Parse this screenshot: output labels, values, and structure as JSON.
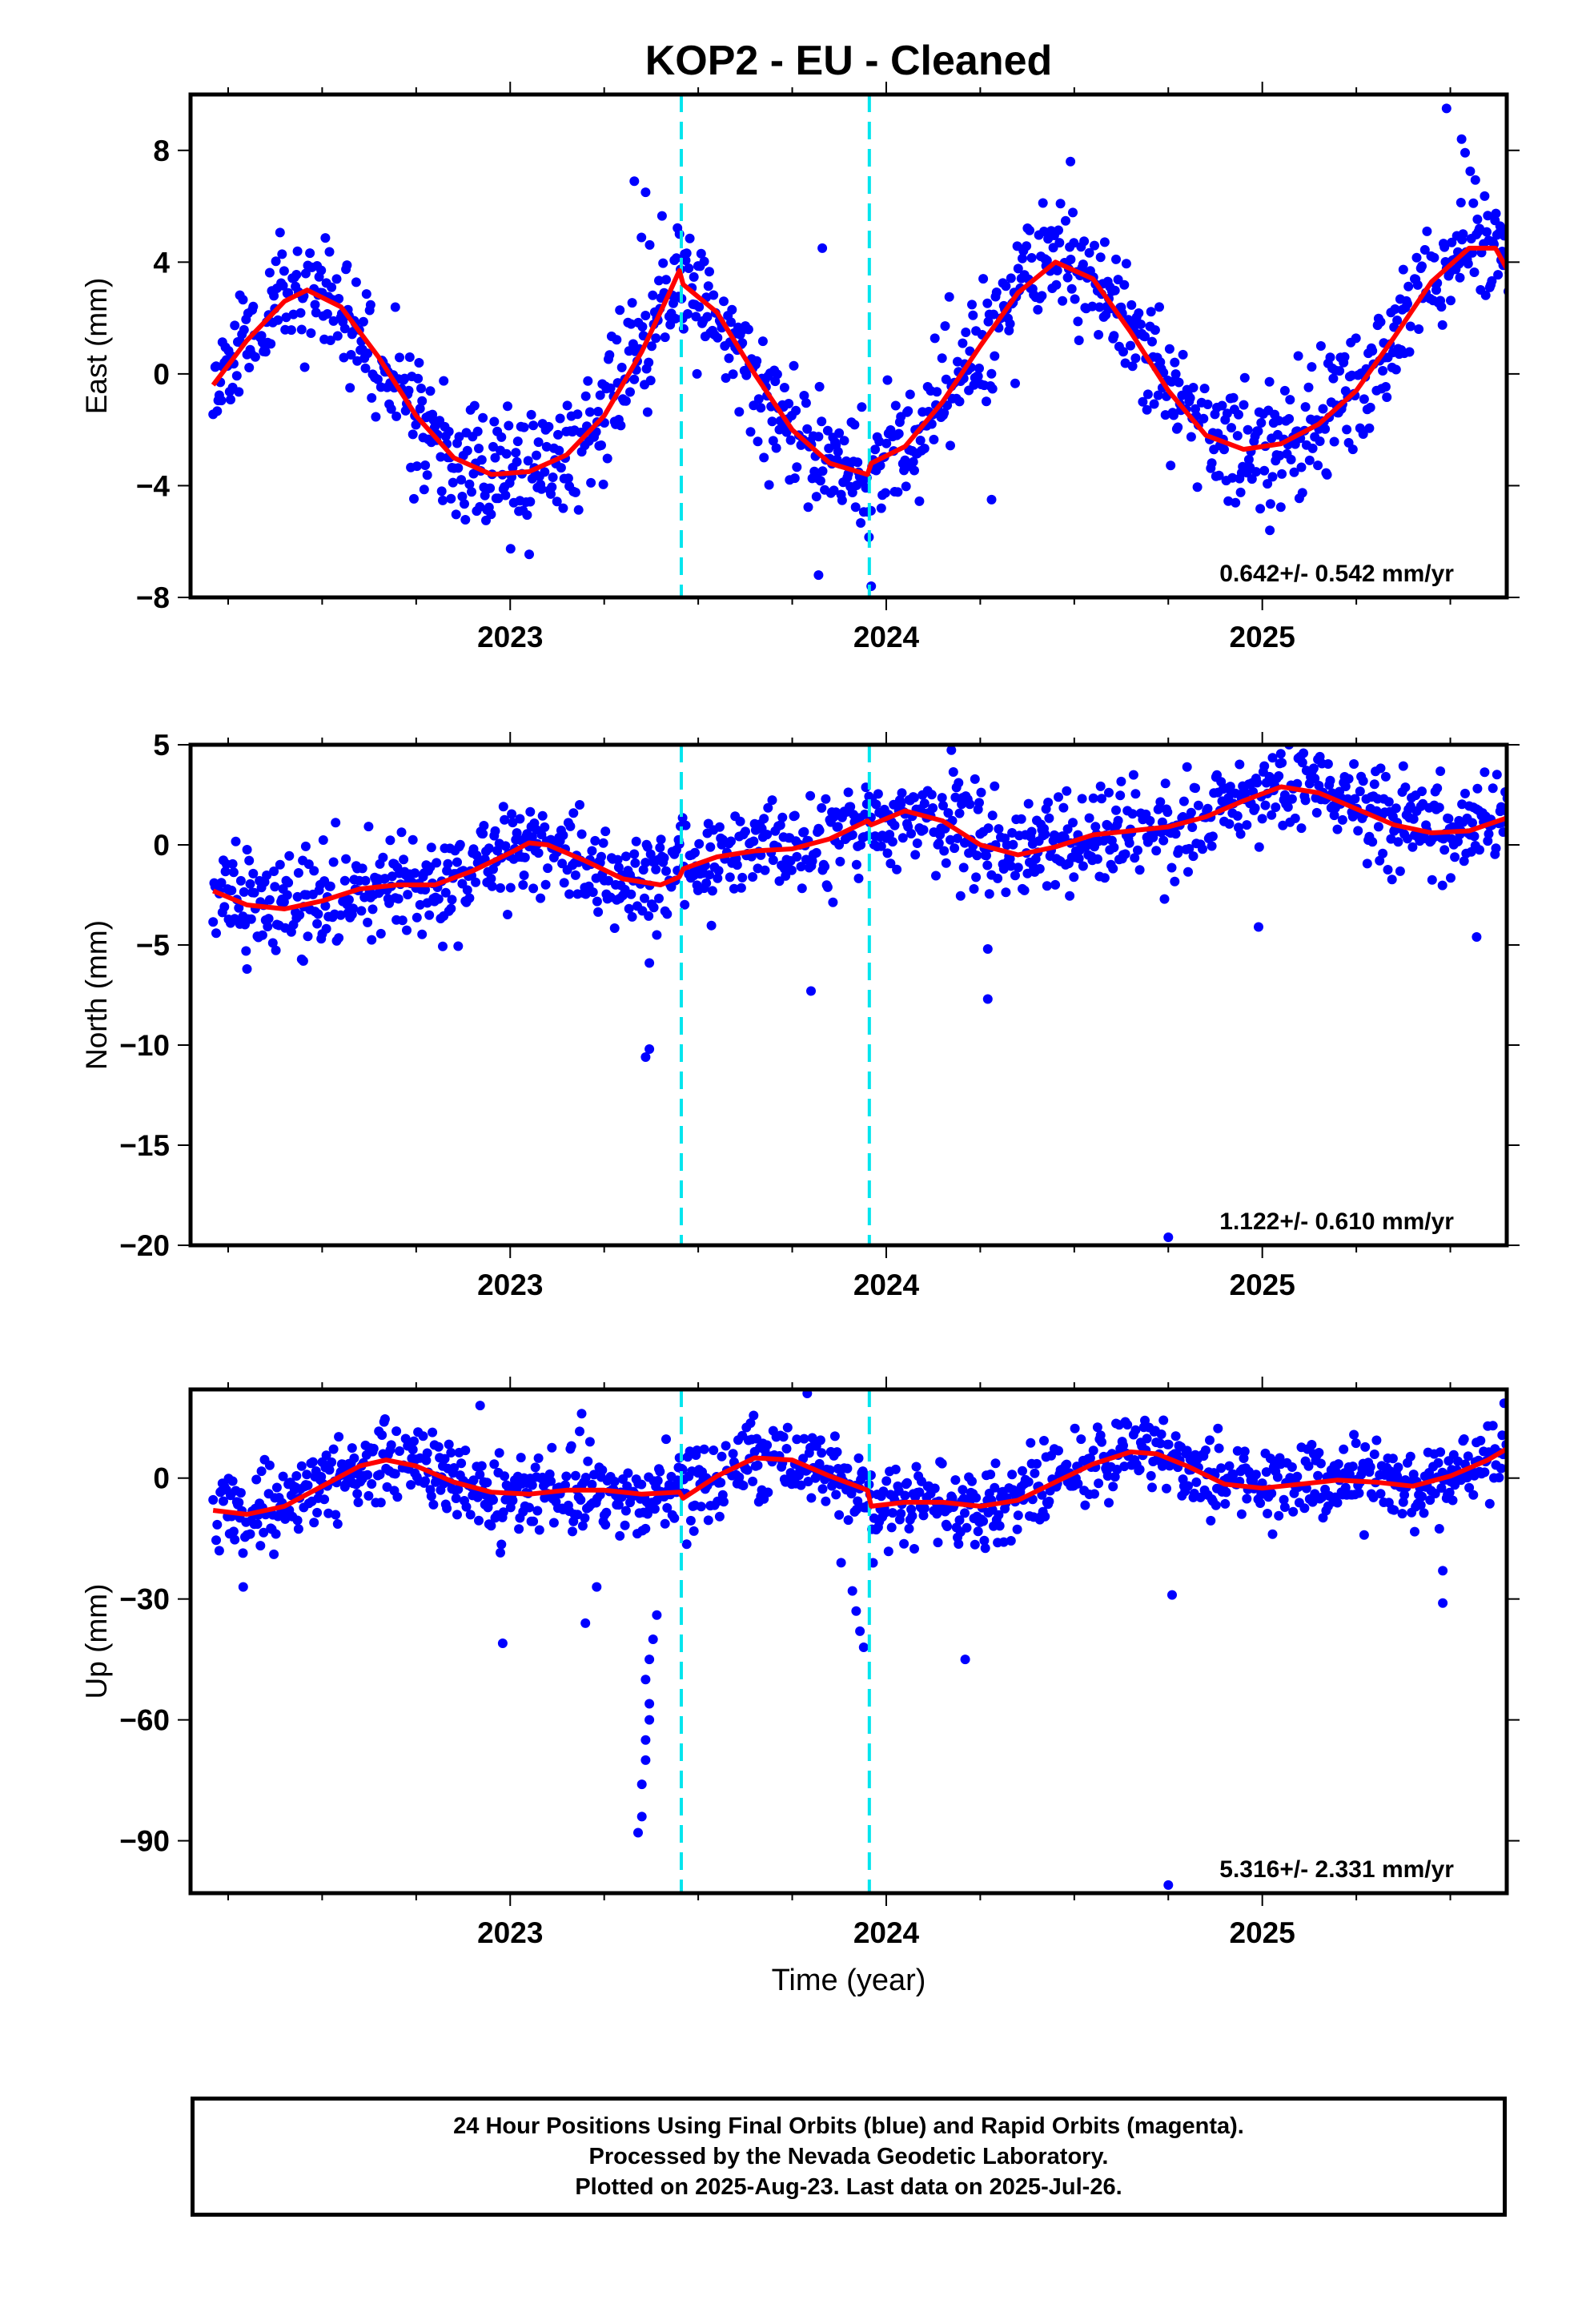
{
  "chart_data": {
    "type": "scatter",
    "title": "KOP2  - EU - Cleaned",
    "xlabel": "Time (year)",
    "x_ticks": [
      "2023",
      "2024",
      "2025"
    ],
    "xlim": [
      2022.15,
      2025.65
    ],
    "event_lines_x": [
      2023.455,
      2023.955
    ],
    "colors": {
      "points": "#0000ff",
      "fit": "#ff0000",
      "event_lines": "#00e5ee",
      "frame": "#000000"
    },
    "panels": [
      {
        "name": "east",
        "ylabel": "East (mm)",
        "ylim": [
          -8,
          10
        ],
        "y_ticks": [
          -8,
          -4,
          0,
          4,
          8
        ],
        "rate_label": "0.642+/- 0.542 mm/yr",
        "fit": [
          [
            2022.21,
            -0.4
          ],
          [
            2022.3,
            1.2
          ],
          [
            2022.4,
            2.6
          ],
          [
            2022.46,
            3.0
          ],
          [
            2022.55,
            2.4
          ],
          [
            2022.65,
            0.6
          ],
          [
            2022.75,
            -1.5
          ],
          [
            2022.85,
            -3.0
          ],
          [
            2022.95,
            -3.6
          ],
          [
            2023.05,
            -3.5
          ],
          [
            2023.15,
            -2.9
          ],
          [
            2023.25,
            -1.5
          ],
          [
            2023.35,
            0.8
          ],
          [
            2023.42,
            2.8
          ],
          [
            2023.45,
            3.7
          ],
          [
            2023.46,
            3.2
          ],
          [
            2023.55,
            2.2
          ],
          [
            2023.65,
            0.0
          ],
          [
            2023.75,
            -2.0
          ],
          [
            2023.85,
            -3.2
          ],
          [
            2023.95,
            -3.6
          ],
          [
            2023.96,
            -3.2
          ],
          [
            2024.05,
            -2.6
          ],
          [
            2024.15,
            -1.0
          ],
          [
            2024.25,
            1.0
          ],
          [
            2024.35,
            2.9
          ],
          [
            2024.45,
            4.0
          ],
          [
            2024.55,
            3.4
          ],
          [
            2024.65,
            1.5
          ],
          [
            2024.75,
            -0.6
          ],
          [
            2024.85,
            -2.2
          ],
          [
            2024.95,
            -2.7
          ],
          [
            2025.05,
            -2.5
          ],
          [
            2025.15,
            -1.8
          ],
          [
            2025.25,
            -0.6
          ],
          [
            2025.35,
            1.3
          ],
          [
            2025.45,
            3.3
          ],
          [
            2025.55,
            4.5
          ],
          [
            2025.62,
            4.5
          ],
          [
            2025.69,
            2.8
          ]
        ],
        "outliers": [
          [
            2023.33,
            6.9
          ],
          [
            2023.36,
            6.5
          ],
          [
            2023.83,
            4.5
          ],
          [
            2024.49,
            7.6
          ],
          [
            2025.49,
            9.5
          ],
          [
            2025.53,
            8.4
          ],
          [
            2023.82,
            -7.2
          ],
          [
            2023.96,
            -7.6
          ],
          [
            2024.28,
            -4.5
          ],
          [
            2025.02,
            -5.6
          ]
        ],
        "scatter": {
          "amp": 1.1,
          "seed": 11
        }
      },
      {
        "name": "north",
        "ylabel": "North (mm)",
        "ylim": [
          -20,
          5
        ],
        "y_ticks": [
          -20,
          -15,
          -10,
          -5,
          0,
          5
        ],
        "rate_label": "1.122+/- 0.610 mm/yr",
        "fit": [
          [
            2022.21,
            -2.3
          ],
          [
            2022.3,
            -3.0
          ],
          [
            2022.4,
            -3.2
          ],
          [
            2022.5,
            -2.8
          ],
          [
            2022.6,
            -2.2
          ],
          [
            2022.7,
            -2.0
          ],
          [
            2022.8,
            -2.0
          ],
          [
            2022.9,
            -1.3
          ],
          [
            2023.0,
            -0.4
          ],
          [
            2023.05,
            0.1
          ],
          [
            2023.1,
            0.0
          ],
          [
            2023.2,
            -0.8
          ],
          [
            2023.3,
            -1.7
          ],
          [
            2023.4,
            -2.0
          ],
          [
            2023.45,
            -1.6
          ],
          [
            2023.46,
            -1.2
          ],
          [
            2023.55,
            -0.6
          ],
          [
            2023.65,
            -0.3
          ],
          [
            2023.75,
            -0.2
          ],
          [
            2023.85,
            0.3
          ],
          [
            2023.95,
            1.2
          ],
          [
            2023.96,
            1.0
          ],
          [
            2024.05,
            1.7
          ],
          [
            2024.15,
            1.2
          ],
          [
            2024.25,
            0.0
          ],
          [
            2024.35,
            -0.5
          ],
          [
            2024.45,
            -0.1
          ],
          [
            2024.55,
            0.5
          ],
          [
            2024.65,
            0.7
          ],
          [
            2024.75,
            0.9
          ],
          [
            2024.85,
            1.4
          ],
          [
            2024.95,
            2.2
          ],
          [
            2025.05,
            2.9
          ],
          [
            2025.15,
            2.6
          ],
          [
            2025.25,
            1.8
          ],
          [
            2025.35,
            1.0
          ],
          [
            2025.45,
            0.6
          ],
          [
            2025.55,
            0.7
          ],
          [
            2025.69,
            1.6
          ]
        ],
        "outliers": [
          [
            2023.36,
            -10.6
          ],
          [
            2023.37,
            -10.2
          ],
          [
            2023.37,
            -5.9
          ],
          [
            2023.39,
            -4.5
          ],
          [
            2023.8,
            -7.3
          ],
          [
            2024.27,
            -7.7
          ],
          [
            2024.27,
            -5.2
          ],
          [
            2024.75,
            -19.6
          ],
          [
            2024.99,
            -4.1
          ],
          [
            2025.57,
            -4.6
          ],
          [
            2025.35,
            5.2
          ],
          [
            2022.3,
            -6.2
          ],
          [
            2022.45,
            -5.8
          ]
        ],
        "scatter": {
          "amp": 1.2,
          "seed": 23
        }
      },
      {
        "name": "up",
        "ylabel": "Up (mm)",
        "ylim": [
          -103,
          22
        ],
        "y_ticks": [
          -90,
          -60,
          -30,
          0
        ],
        "rate_label": "5.316+/- 2.331 mm/yr",
        "fit": [
          [
            2022.21,
            -8.0
          ],
          [
            2022.3,
            -9.0
          ],
          [
            2022.4,
            -7.0
          ],
          [
            2022.5,
            -2.0
          ],
          [
            2022.6,
            3.0
          ],
          [
            2022.67,
            4.5
          ],
          [
            2022.75,
            3.0
          ],
          [
            2022.85,
            -1.0
          ],
          [
            2022.95,
            -3.5
          ],
          [
            2023.05,
            -4.0
          ],
          [
            2023.15,
            -3.0
          ],
          [
            2023.25,
            -3.0
          ],
          [
            2023.35,
            -4.0
          ],
          [
            2023.45,
            -3.5
          ],
          [
            2023.46,
            -5.0
          ],
          [
            2023.55,
            0.5
          ],
          [
            2023.65,
            5.0
          ],
          [
            2023.75,
            4.5
          ],
          [
            2023.85,
            0.5
          ],
          [
            2023.95,
            -3.0
          ],
          [
            2023.96,
            -7.0
          ],
          [
            2024.05,
            -6.0
          ],
          [
            2024.15,
            -6.0
          ],
          [
            2024.25,
            -7.0
          ],
          [
            2024.35,
            -5.5
          ],
          [
            2024.45,
            -1.0
          ],
          [
            2024.55,
            3.5
          ],
          [
            2024.65,
            6.5
          ],
          [
            2024.72,
            6.0
          ],
          [
            2024.8,
            3.0
          ],
          [
            2024.9,
            -1.5
          ],
          [
            2025.0,
            -2.5
          ],
          [
            2025.1,
            -1.5
          ],
          [
            2025.2,
            -0.5
          ],
          [
            2025.3,
            -1.0
          ],
          [
            2025.4,
            -2.0
          ],
          [
            2025.5,
            0.5
          ],
          [
            2025.6,
            4.5
          ],
          [
            2025.69,
            9.5
          ]
        ],
        "outliers": [
          [
            2023.34,
            -88.0
          ],
          [
            2023.35,
            -84.0
          ],
          [
            2023.35,
            -76.0
          ],
          [
            2023.36,
            -70.0
          ],
          [
            2023.36,
            -65.0
          ],
          [
            2023.37,
            -60.0
          ],
          [
            2023.37,
            -56.0
          ],
          [
            2023.36,
            -50.0
          ],
          [
            2023.37,
            -45.0
          ],
          [
            2023.38,
            -40.0
          ],
          [
            2023.39,
            -34.0
          ],
          [
            2022.98,
            -41.0
          ],
          [
            2023.2,
            -36.0
          ],
          [
            2023.23,
            -27.0
          ],
          [
            2022.29,
            -27.0
          ],
          [
            2023.88,
            -21.0
          ],
          [
            2023.91,
            -28.0
          ],
          [
            2023.92,
            -33.0
          ],
          [
            2023.93,
            -38.0
          ],
          [
            2023.94,
            -42.0
          ],
          [
            2024.21,
            -45.0
          ],
          [
            2024.75,
            -101.0
          ],
          [
            2024.76,
            -29.0
          ],
          [
            2025.48,
            -23.0
          ],
          [
            2025.48,
            -31.0
          ],
          [
            2023.79,
            21.0
          ],
          [
            2022.92,
            18.0
          ],
          [
            2023.19,
            16.0
          ]
        ],
        "scatter": {
          "amp": 4.8,
          "seed": 37
        }
      }
    ]
  },
  "caption": [
    "24 Hour Positions Using Final Orbits (blue) and Rapid Orbits (magenta).",
    "Processed by the Nevada Geodetic Laboratory.",
    "Plotted on 2025-Aug-23. Last data on 2025-Jul-26."
  ]
}
